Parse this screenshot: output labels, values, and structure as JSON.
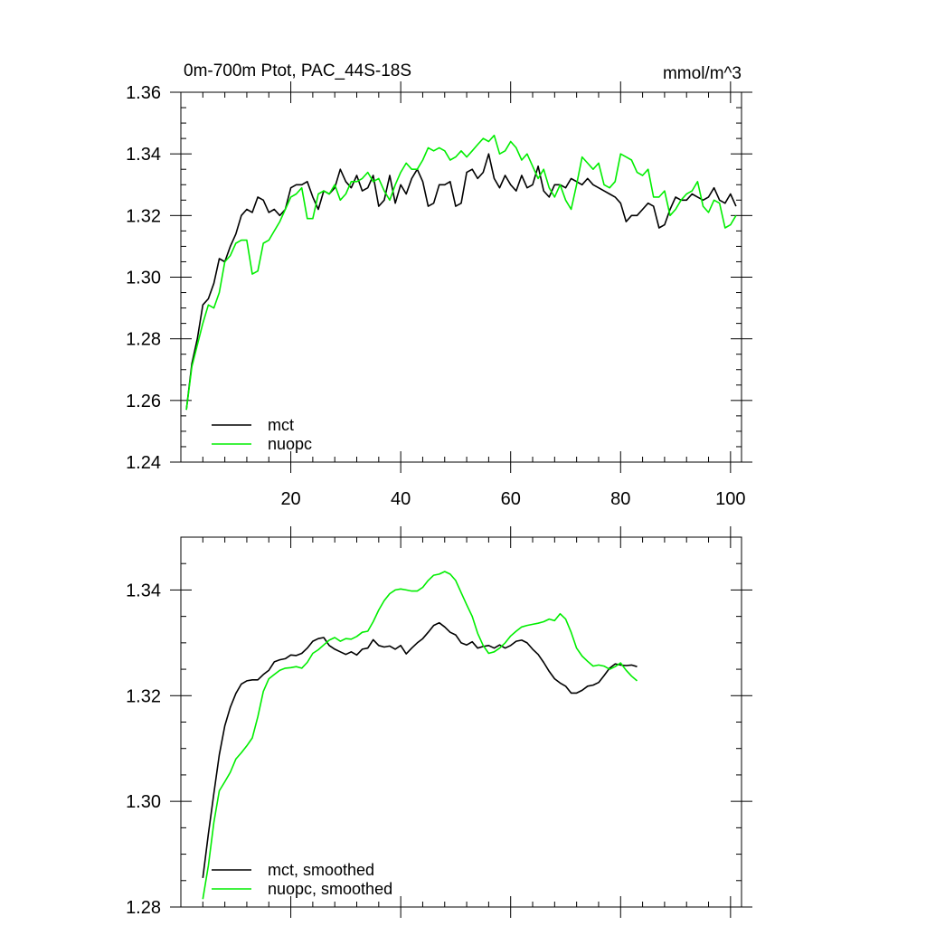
{
  "chart_data": [
    {
      "type": "line",
      "title_left": "0m-700m Ptot, PAC_44S-18S",
      "title_right": "mmol/m^3",
      "xlim": [
        0,
        102
      ],
      "ylim": [
        1.24,
        1.36
      ],
      "x_ticks": [
        20,
        40,
        60,
        80,
        100
      ],
      "y_ticks": [
        1.24,
        1.26,
        1.28,
        1.3,
        1.32,
        1.34,
        1.36
      ],
      "y_tick_labels": [
        "1.24",
        "1.26",
        "1.28",
        "1.30",
        "1.32",
        "1.34",
        "1.36"
      ],
      "x_tick_labels": [
        "20",
        "40",
        "60",
        "80",
        "100"
      ],
      "legend": {
        "position": "bottom-left",
        "entries": [
          "mct",
          "nuopc"
        ]
      },
      "series": [
        {
          "name": "mct",
          "color": "#000000",
          "x_start": 1,
          "values": [
            1.257,
            1.272,
            1.28,
            1.291,
            1.293,
            1.298,
            1.306,
            1.305,
            1.31,
            1.314,
            1.32,
            1.322,
            1.321,
            1.326,
            1.325,
            1.321,
            1.322,
            1.32,
            1.322,
            1.329,
            1.33,
            1.33,
            1.331,
            1.326,
            1.322,
            1.328,
            1.327,
            1.329,
            1.335,
            1.331,
            1.329,
            1.333,
            1.328,
            1.329,
            1.333,
            1.323,
            1.325,
            1.333,
            1.324,
            1.33,
            1.327,
            1.332,
            1.335,
            1.331,
            1.323,
            1.324,
            1.33,
            1.33,
            1.331,
            1.323,
            1.324,
            1.334,
            1.335,
            1.332,
            1.334,
            1.34,
            1.332,
            1.329,
            1.333,
            1.33,
            1.328,
            1.333,
            1.329,
            1.33,
            1.336,
            1.328,
            1.326,
            1.33,
            1.33,
            1.329,
            1.332,
            1.331,
            1.33,
            1.332,
            1.33,
            1.329,
            1.328,
            1.327,
            1.326,
            1.324,
            1.318,
            1.32,
            1.32,
            1.322,
            1.324,
            1.323,
            1.316,
            1.317,
            1.322,
            1.326,
            1.325,
            1.325,
            1.327,
            1.326,
            1.325,
            1.326,
            1.329,
            1.325,
            1.324,
            1.327,
            1.323
          ]
        },
        {
          "name": "nuopc",
          "color": "#00ee00",
          "x_start": 1,
          "values": [
            1.257,
            1.271,
            1.278,
            1.285,
            1.291,
            1.29,
            1.295,
            1.305,
            1.307,
            1.311,
            1.312,
            1.312,
            1.301,
            1.302,
            1.311,
            1.312,
            1.315,
            1.318,
            1.322,
            1.326,
            1.327,
            1.329,
            1.319,
            1.319,
            1.327,
            1.328,
            1.327,
            1.33,
            1.325,
            1.327,
            1.331,
            1.331,
            1.332,
            1.334,
            1.331,
            1.332,
            1.328,
            1.325,
            1.33,
            1.334,
            1.337,
            1.335,
            1.335,
            1.338,
            1.342,
            1.341,
            1.342,
            1.341,
            1.338,
            1.339,
            1.341,
            1.339,
            1.341,
            1.343,
            1.345,
            1.344,
            1.346,
            1.34,
            1.341,
            1.344,
            1.342,
            1.338,
            1.34,
            1.336,
            1.332,
            1.335,
            1.329,
            1.326,
            1.33,
            1.325,
            1.322,
            1.33,
            1.339,
            1.337,
            1.335,
            1.337,
            1.33,
            1.329,
            1.331,
            1.34,
            1.339,
            1.338,
            1.334,
            1.333,
            1.335,
            1.326,
            1.326,
            1.328,
            1.32,
            1.322,
            1.325,
            1.327,
            1.328,
            1.331,
            1.323,
            1.321,
            1.325,
            1.324,
            1.316,
            1.317,
            1.32
          ]
        }
      ]
    },
    {
      "type": "line",
      "xlim": [
        0,
        102
      ],
      "ylim": [
        1.28,
        1.35
      ],
      "x_ticks": [
        20,
        40,
        60,
        80,
        100
      ],
      "y_ticks": [
        1.28,
        1.3,
        1.32,
        1.34
      ],
      "y_tick_labels": [
        "1.28",
        "1.30",
        "1.32",
        "1.34"
      ],
      "legend": {
        "position": "bottom-left",
        "entries": [
          "mct, smoothed",
          "nuopc, smoothed"
        ]
      },
      "series": [
        {
          "name": "mct, smoothed",
          "color": "#000000",
          "x_start": 4,
          "values": [
            1.2855,
            1.2938,
            1.3015,
            1.3088,
            1.3143,
            1.3178,
            1.3204,
            1.3222,
            1.3228,
            1.323,
            1.323,
            1.324,
            1.3248,
            1.3264,
            1.3268,
            1.327,
            1.3277,
            1.3276,
            1.328,
            1.329,
            1.3303,
            1.3308,
            1.331,
            1.3295,
            1.3288,
            1.3283,
            1.3278,
            1.3283,
            1.3277,
            1.3288,
            1.329,
            1.3306,
            1.3295,
            1.3292,
            1.3294,
            1.3288,
            1.3295,
            1.3279,
            1.329,
            1.33,
            1.3308,
            1.332,
            1.3333,
            1.3338,
            1.333,
            1.332,
            1.3315,
            1.33,
            1.3296,
            1.3302,
            1.329,
            1.3293,
            1.3295,
            1.329,
            1.3296,
            1.329,
            1.3295,
            1.3303,
            1.3305,
            1.33,
            1.3288,
            1.3278,
            1.3263,
            1.3246,
            1.3232,
            1.3224,
            1.3218,
            1.3205,
            1.3205,
            1.321,
            1.3218,
            1.322,
            1.3225,
            1.3238,
            1.3252,
            1.326,
            1.3258,
            1.3257,
            1.3258,
            1.3255
          ]
        },
        {
          "name": "nuopc, smoothed",
          "color": "#00ee00",
          "x_start": 4,
          "values": [
            1.2815,
            1.2878,
            1.296,
            1.302,
            1.3037,
            1.3055,
            1.308,
            1.3092,
            1.3105,
            1.312,
            1.316,
            1.3208,
            1.3232,
            1.324,
            1.3248,
            1.3252,
            1.3253,
            1.3255,
            1.3252,
            1.3263,
            1.328,
            1.3287,
            1.3296,
            1.3305,
            1.331,
            1.3303,
            1.3308,
            1.3307,
            1.3312,
            1.332,
            1.3322,
            1.334,
            1.3362,
            1.338,
            1.3393,
            1.34,
            1.3402,
            1.34,
            1.3398,
            1.3398,
            1.3405,
            1.3418,
            1.3428,
            1.343,
            1.3435,
            1.343,
            1.3418,
            1.3395,
            1.3372,
            1.335,
            1.3318,
            1.3295,
            1.328,
            1.3283,
            1.329,
            1.33,
            1.3313,
            1.3322,
            1.333,
            1.3333,
            1.3335,
            1.3337,
            1.334,
            1.3345,
            1.3342,
            1.3355,
            1.3345,
            1.332,
            1.329,
            1.3275,
            1.3265,
            1.3256,
            1.3258,
            1.3256,
            1.325,
            1.3255,
            1.3262,
            1.3248,
            1.3237,
            1.3228
          ]
        }
      ]
    }
  ]
}
